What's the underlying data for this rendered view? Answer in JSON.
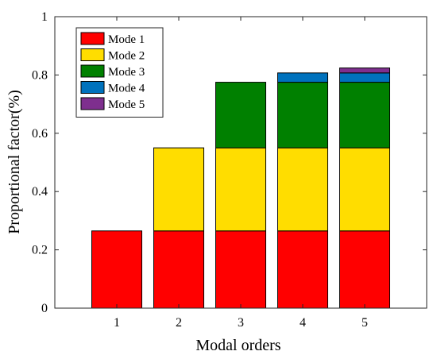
{
  "chart_data": {
    "type": "bar",
    "stacked": true,
    "xlabel": "Modal orders",
    "ylabel": "Proportional factor(%)",
    "categories": [
      "1",
      "2",
      "3",
      "4",
      "5"
    ],
    "ylim": [
      0,
      1
    ],
    "yticks": [
      "0",
      "0.2",
      "0.4",
      "0.6",
      "0.8",
      "1"
    ],
    "grid": false,
    "legend_position": "top-left",
    "series": [
      {
        "name": "Mode 1",
        "color": "#ff0000",
        "values": [
          0.265,
          0.265,
          0.265,
          0.265,
          0.265
        ]
      },
      {
        "name": "Mode 2",
        "color": "#ffdd00",
        "values": [
          0,
          0.285,
          0.285,
          0.285,
          0.285
        ]
      },
      {
        "name": "Mode 3",
        "color": "#008000",
        "values": [
          0,
          0,
          0.225,
          0.225,
          0.225
        ]
      },
      {
        "name": "Mode 4",
        "color": "#0072bd",
        "values": [
          0,
          0,
          0,
          0.032,
          0.032
        ]
      },
      {
        "name": "Mode 5",
        "color": "#7e2f8e",
        "values": [
          0,
          0,
          0,
          0,
          0.017
        ]
      }
    ]
  }
}
